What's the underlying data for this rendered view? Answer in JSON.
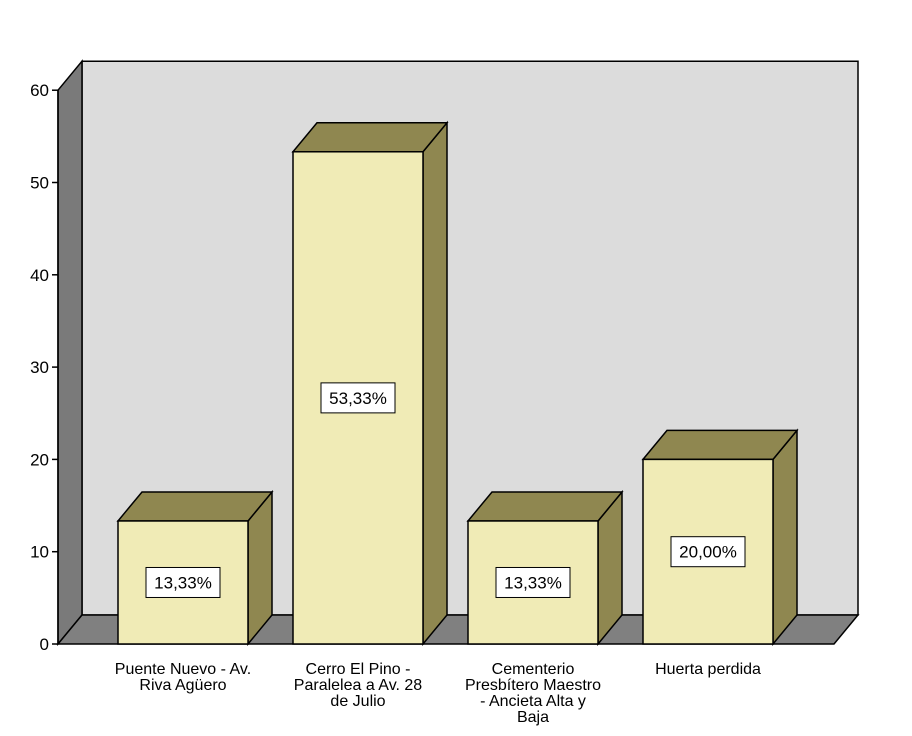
{
  "chart_data": {
    "type": "bar",
    "style": "3d",
    "title": "",
    "xlabel": "",
    "ylabel": "",
    "ylim": [
      0,
      60
    ],
    "yticks": [
      0,
      10,
      20,
      30,
      40,
      50,
      60
    ],
    "categories": [
      [
        "Puente Nuevo - Av.",
        "Riva Agüero"
      ],
      [
        "Cerro El Pino -",
        "Paralelea a Av. 28",
        "de Julio"
      ],
      [
        "Cementerio",
        "Presbítero Maestro",
        "- Ancieta Alta y",
        "Baja"
      ],
      [
        "Huerta perdida"
      ]
    ],
    "values": [
      13.33,
      53.33,
      13.33,
      20.0
    ],
    "data_labels": [
      "13,33%",
      "53,33%",
      "13,33%",
      "20,00%"
    ],
    "grid": false,
    "legend": "none",
    "colors": {
      "bar_front": "#f0ebb6",
      "bar_top": "#8f8750",
      "bar_side": "#8f8750",
      "back_wall": "#dcdcdc",
      "side_wall": "#7a7a7a",
      "floor": "#808080",
      "outline": "#000000"
    }
  }
}
